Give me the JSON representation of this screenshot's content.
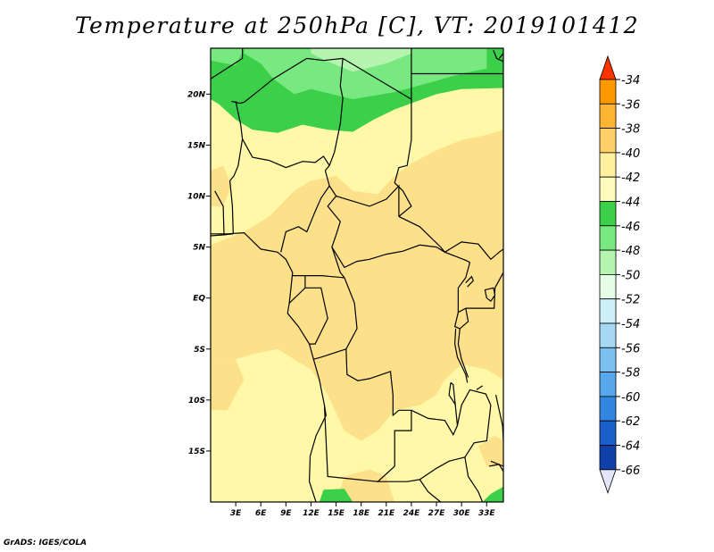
{
  "title": "Temperature at 250hPa [C], VT: 2019101412",
  "credit": "GrADS: IGES/COLA",
  "map": {
    "lon_range": [
      0,
      35
    ],
    "lat_range": [
      -20,
      24.5
    ],
    "lat_ticks": [
      {
        "value": 20,
        "label": "20N"
      },
      {
        "value": 15,
        "label": "15N"
      },
      {
        "value": 10,
        "label": "10N"
      },
      {
        "value": 5,
        "label": "5N"
      },
      {
        "value": 0,
        "label": "EQ"
      },
      {
        "value": -5,
        "label": "5S"
      },
      {
        "value": -10,
        "label": "10S"
      },
      {
        "value": -15,
        "label": "15S"
      }
    ],
    "lon_ticks": [
      {
        "value": 3,
        "label": "3E"
      },
      {
        "value": 6,
        "label": "6E"
      },
      {
        "value": 9,
        "label": "9E"
      },
      {
        "value": 12,
        "label": "12E"
      },
      {
        "value": 15,
        "label": "15E"
      },
      {
        "value": 18,
        "label": "18E"
      },
      {
        "value": 21,
        "label": "21E"
      },
      {
        "value": 24,
        "label": "24E"
      },
      {
        "value": 27,
        "label": "27E"
      },
      {
        "value": 30,
        "label": "30E"
      },
      {
        "value": 33,
        "label": "33E"
      }
    ],
    "colors": {
      "background": "#fff8a8",
      "light_orange": "#fde08a",
      "green_dark": "#3cd04a",
      "green_mid": "#78e880",
      "green_light": "#b5f5b0",
      "border": "#000000"
    }
  },
  "colorbar": {
    "levels": [
      {
        "label": "-34",
        "color": "#ff6a00"
      },
      {
        "label": "-36",
        "color": "#ff9900"
      },
      {
        "label": "-38",
        "color": "#ffb531"
      },
      {
        "label": "-40",
        "color": "#fdd06a"
      },
      {
        "label": "-42",
        "color": "#fff0a0"
      },
      {
        "label": "-44",
        "color": "#fffbbf"
      },
      {
        "label": "-46",
        "color": "#3cd04a"
      },
      {
        "label": "-48",
        "color": "#78e880"
      },
      {
        "label": "-50",
        "color": "#b5f5b0"
      },
      {
        "label": "-52",
        "color": "#e6fde8"
      },
      {
        "label": "-54",
        "color": "#cdeff8"
      },
      {
        "label": "-56",
        "color": "#a6d8f4"
      },
      {
        "label": "-58",
        "color": "#7cc0f0"
      },
      {
        "label": "-60",
        "color": "#56a8ea"
      },
      {
        "label": "-62",
        "color": "#3286e0"
      },
      {
        "label": "-64",
        "color": "#1a60c8"
      },
      {
        "label": "-66",
        "color": "#0f40a8"
      }
    ],
    "top_color": "#ff3300",
    "bottom_color": "#e4e4fa",
    "under_bottom_color": "#0a1a78"
  }
}
